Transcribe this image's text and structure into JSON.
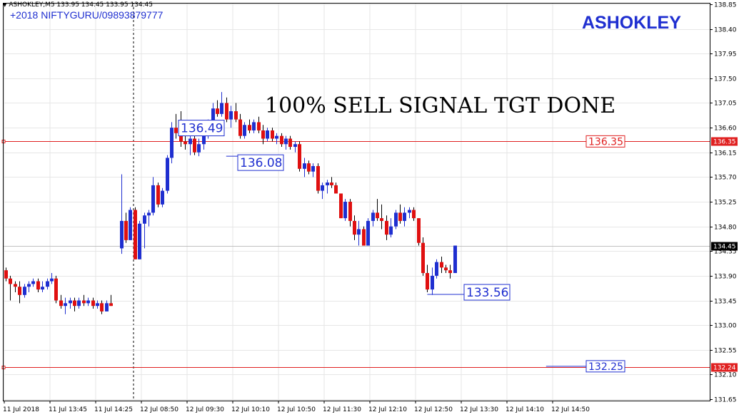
{
  "header": {
    "symbol_info": "ASHOKLEY,M5  133.95 134.45 133.95 134.45",
    "watermark": "+2018 NIFTYGURU/09893879777"
  },
  "title": "ASHOKLEY",
  "annotation_text": "100% SELL SIGNAL TGT DONE",
  "colors": {
    "bull": "#1f2fd0",
    "bear": "#e01010",
    "wick": "#000000",
    "hline": "#e02020",
    "grid": "#e6e6e6",
    "label_blue": "#1f2fd0",
    "label_red": "#e02020"
  },
  "chart_data": {
    "type": "candlestick",
    "timeframe": "M5",
    "ylim": [
      131.65,
      138.85
    ],
    "y_ticks": [
      "138.85",
      "138.40",
      "137.95",
      "137.50",
      "137.05",
      "136.60",
      "136.15",
      "135.70",
      "135.25",
      "134.80",
      "134.35",
      "133.90",
      "133.45",
      "133.00",
      "132.55",
      "132.10",
      "131.65"
    ],
    "x_ticks": [
      "11 Jul 2018",
      "11 Jul 13:45",
      "11 Jul 14:25",
      "12 Jul 08:50",
      "12 Jul 09:30",
      "12 Jul 10:10",
      "12 Jul 10:50",
      "12 Jul 11:30",
      "12 Jul 12:10",
      "12 Jul 12:50",
      "12 Jul 13:30",
      "12 Jul 14:10",
      "12 Jul 14:50"
    ],
    "current_price": "134.45",
    "horizontal_lines": [
      {
        "label": "136.35",
        "value": 136.35,
        "color": "#e02020"
      },
      {
        "label": "132.24",
        "value": 132.24,
        "color": "#e02020"
      }
    ],
    "price_labels": [
      {
        "text": "136.49",
        "value": 136.49
      },
      {
        "text": "136.08",
        "value": 136.08
      },
      {
        "text": "133.56",
        "value": 133.56
      },
      {
        "text": "136.35",
        "value": 136.35
      },
      {
        "text": "132.25",
        "value": 132.25
      }
    ],
    "candles": [
      [
        134.0,
        134.05,
        133.8,
        133.85
      ],
      [
        133.85,
        133.9,
        133.45,
        133.75
      ],
      [
        133.75,
        133.8,
        133.6,
        133.7
      ],
      [
        133.7,
        133.8,
        133.4,
        133.55
      ],
      [
        133.55,
        133.75,
        133.5,
        133.7
      ],
      [
        133.7,
        133.8,
        133.6,
        133.75
      ],
      [
        133.75,
        133.85,
        133.7,
        133.8
      ],
      [
        133.8,
        133.85,
        133.6,
        133.65
      ],
      [
        133.65,
        133.8,
        133.6,
        133.7
      ],
      [
        133.7,
        133.85,
        133.65,
        133.8
      ],
      [
        133.8,
        133.95,
        133.75,
        133.85
      ],
      [
        133.85,
        133.9,
        133.4,
        133.45
      ],
      [
        133.45,
        133.55,
        133.3,
        133.35
      ],
      [
        133.35,
        133.5,
        133.2,
        133.4
      ],
      [
        133.4,
        133.5,
        133.3,
        133.45
      ],
      [
        133.45,
        133.5,
        133.25,
        133.35
      ],
      [
        133.35,
        133.5,
        133.3,
        133.45
      ],
      [
        133.45,
        133.55,
        133.35,
        133.4
      ],
      [
        133.4,
        133.5,
        133.35,
        133.45
      ],
      [
        133.45,
        133.5,
        133.3,
        133.35
      ],
      [
        133.35,
        133.45,
        133.3,
        133.4
      ],
      [
        133.4,
        133.45,
        133.2,
        133.25
      ],
      [
        133.25,
        133.45,
        133.25,
        133.4
      ],
      [
        133.4,
        133.55,
        133.35,
        133.35
      ],
      [
        134.4,
        135.75,
        134.3,
        134.9
      ],
      [
        134.9,
        135.05,
        134.5,
        134.55
      ],
      [
        134.55,
        135.15,
        134.55,
        135.1
      ],
      [
        135.1,
        135.15,
        134.2,
        134.2
      ],
      [
        134.2,
        134.9,
        134.2,
        134.85
      ],
      [
        134.85,
        135.05,
        134.4,
        135.0
      ],
      [
        135.0,
        135.1,
        134.8,
        135.05
      ],
      [
        135.05,
        135.7,
        135.0,
        135.55
      ],
      [
        135.55,
        135.6,
        135.15,
        135.2
      ],
      [
        135.2,
        135.5,
        135.15,
        135.45
      ],
      [
        135.45,
        136.1,
        135.4,
        136.05
      ],
      [
        136.05,
        136.7,
        135.95,
        136.6
      ],
      [
        136.6,
        136.85,
        136.4,
        136.5
      ],
      [
        136.5,
        136.9,
        136.25,
        136.35
      ],
      [
        136.35,
        136.6,
        136.2,
        136.3
      ],
      [
        136.3,
        136.5,
        136.1,
        136.4
      ],
      [
        136.4,
        136.45,
        136.1,
        136.15
      ],
      [
        136.15,
        136.4,
        136.08,
        136.3
      ],
      [
        136.3,
        136.5,
        136.2,
        136.45
      ],
      [
        136.45,
        136.75,
        136.4,
        136.7
      ],
      [
        136.7,
        137.05,
        136.6,
        136.95
      ],
      [
        136.95,
        137.1,
        136.8,
        136.85
      ],
      [
        136.85,
        137.25,
        136.8,
        137.05
      ],
      [
        137.05,
        137.15,
        136.7,
        136.75
      ],
      [
        136.75,
        137.0,
        136.6,
        136.9
      ],
      [
        136.9,
        137.05,
        136.7,
        136.75
      ],
      [
        136.75,
        136.85,
        136.4,
        136.45
      ],
      [
        136.45,
        136.7,
        136.4,
        136.65
      ],
      [
        136.65,
        136.75,
        136.5,
        136.55
      ],
      [
        136.55,
        136.75,
        136.5,
        136.7
      ],
      [
        136.7,
        136.8,
        136.5,
        136.55
      ],
      [
        136.55,
        136.65,
        136.3,
        136.4
      ],
      [
        136.4,
        136.6,
        136.35,
        136.55
      ],
      [
        136.55,
        136.6,
        136.35,
        136.4
      ],
      [
        136.4,
        136.5,
        136.3,
        136.45
      ],
      [
        136.45,
        136.5,
        136.25,
        136.3
      ],
      [
        136.3,
        136.45,
        136.2,
        136.4
      ],
      [
        136.4,
        136.45,
        136.2,
        136.25
      ],
      [
        136.25,
        136.35,
        136.15,
        136.3
      ],
      [
        136.3,
        136.35,
        135.8,
        135.85
      ],
      [
        135.85,
        136.05,
        135.7,
        135.95
      ],
      [
        135.95,
        136.0,
        135.75,
        135.8
      ],
      [
        135.8,
        135.95,
        135.7,
        135.9
      ],
      [
        135.9,
        135.95,
        135.4,
        135.45
      ],
      [
        135.45,
        135.6,
        135.3,
        135.55
      ],
      [
        135.55,
        135.65,
        135.4,
        135.6
      ],
      [
        135.6,
        135.7,
        135.5,
        135.55
      ],
      [
        135.55,
        135.6,
        135.4,
        135.4
      ],
      [
        135.4,
        135.4,
        134.95,
        134.95
      ],
      [
        134.95,
        135.3,
        134.9,
        135.25
      ],
      [
        135.25,
        135.3,
        134.8,
        134.9
      ],
      [
        134.9,
        135.0,
        134.55,
        134.65
      ],
      [
        134.65,
        134.9,
        134.45,
        134.75
      ],
      [
        134.75,
        134.8,
        134.45,
        134.45
      ],
      [
        134.45,
        134.95,
        134.45,
        134.9
      ],
      [
        134.9,
        135.1,
        134.8,
        135.05
      ],
      [
        135.05,
        135.3,
        134.9,
        134.95
      ],
      [
        134.95,
        135.2,
        134.75,
        134.9
      ],
      [
        134.9,
        135.0,
        134.55,
        134.65
      ],
      [
        134.65,
        134.95,
        134.6,
        134.8
      ],
      [
        134.8,
        135.1,
        134.75,
        135.05
      ],
      [
        135.05,
        135.2,
        134.85,
        134.9
      ],
      [
        134.9,
        135.15,
        134.8,
        135.05
      ],
      [
        135.05,
        135.15,
        134.95,
        135.1
      ],
      [
        135.1,
        135.15,
        134.9,
        134.95
      ],
      [
        134.95,
        134.95,
        134.45,
        134.5
      ],
      [
        134.5,
        134.6,
        133.9,
        133.95
      ],
      [
        133.95,
        134.1,
        133.6,
        133.65
      ],
      [
        133.65,
        134.05,
        133.55,
        133.9
      ],
      [
        133.9,
        134.2,
        133.85,
        134.15
      ],
      [
        134.15,
        134.25,
        133.95,
        134.05
      ],
      [
        134.05,
        134.1,
        133.95,
        134.0
      ],
      [
        134.0,
        134.1,
        133.85,
        133.95
      ],
      [
        133.95,
        134.45,
        133.95,
        134.45
      ]
    ]
  }
}
